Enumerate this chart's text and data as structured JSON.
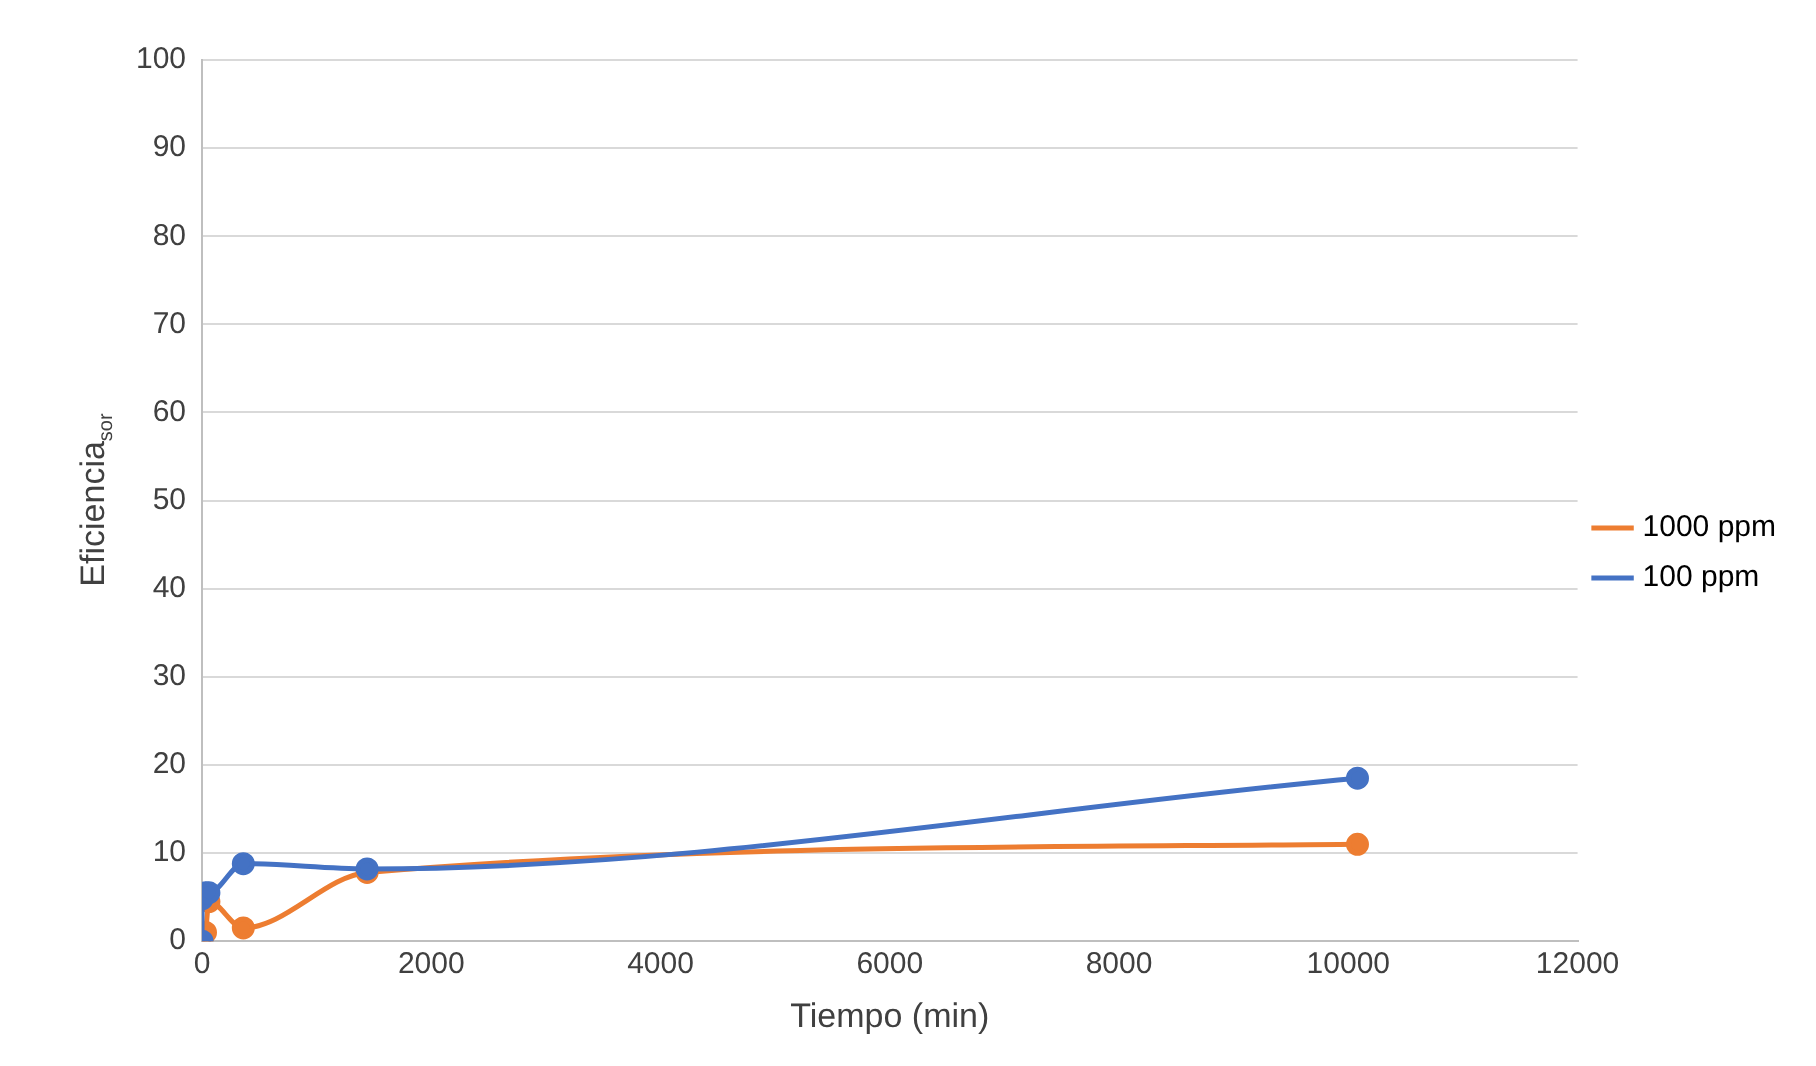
{
  "chart_data": {
    "type": "line",
    "xlabel": "Tiempo (min)",
    "ylabel": "Eficiencia$_{sor}$",
    "series": [
      {
        "name": "1000 ppm",
        "color": "#ed7d31",
        "x": [
          0,
          30,
          60,
          360,
          1440,
          10080
        ],
        "values": [
          0,
          1,
          4.5,
          1.5,
          7.8,
          11
        ]
      },
      {
        "name": "100 ppm",
        "color": "#4472c4",
        "x": [
          0,
          0,
          30,
          60,
          360,
          1440,
          10080
        ],
        "values": [
          0,
          4.8,
          5.5,
          5.5,
          8.8,
          8.2,
          18.5
        ]
      }
    ],
    "xlim": [
      0,
      12000
    ],
    "xticks": [
      0,
      2000,
      4000,
      6000,
      8000,
      10000,
      12000
    ],
    "ylim": [
      0,
      100
    ],
    "yticks": [
      0,
      10,
      20,
      30,
      40,
      50,
      60,
      70,
      80,
      90,
      100
    ],
    "grid": "y",
    "legend": "right",
    "marker": "circle",
    "line_style": "solid"
  }
}
